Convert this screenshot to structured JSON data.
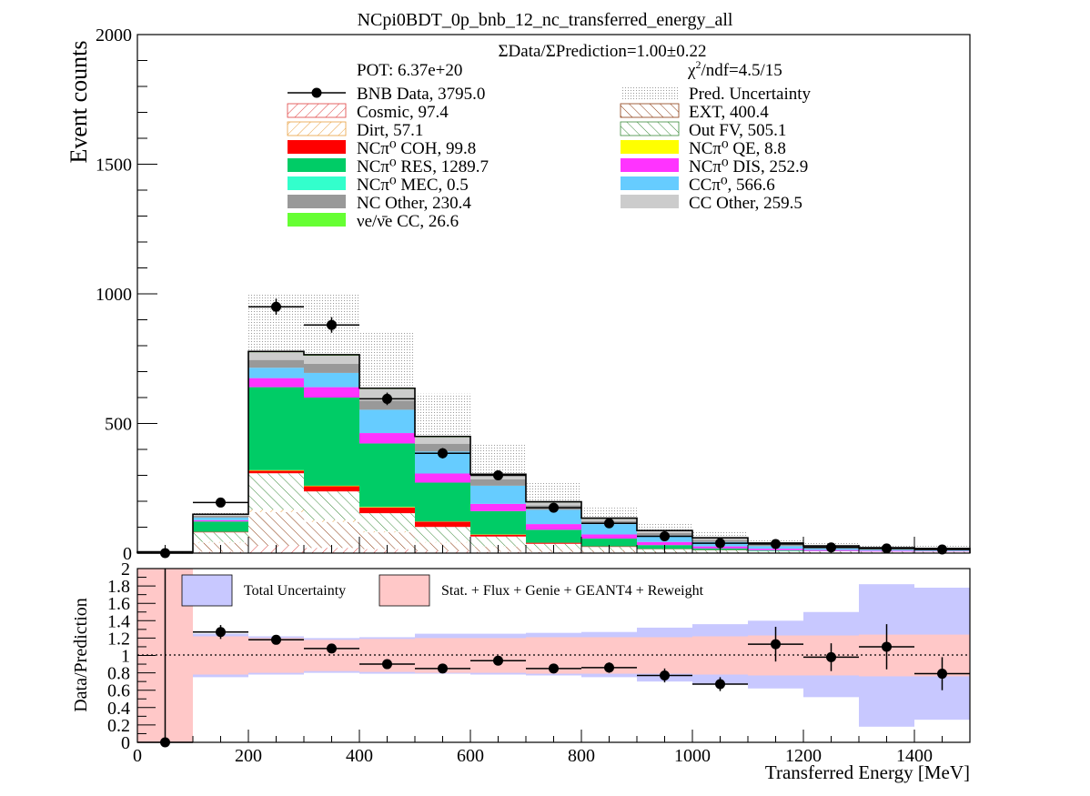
{
  "colors": {
    "cosmic_hatch": "#e04040",
    "dirt_hatch": "#e8a040",
    "ext_hatch": "#8b3a10",
    "outfv_hatch": "#3a8a3a",
    "coh": "#ff0000",
    "res": "#00cc66",
    "mec": "#33ffcc",
    "qe": "#ffff00",
    "dis": "#ff33ff",
    "ccpi0": "#66ccff",
    "nc_other": "#999999",
    "cc_other": "#cccccc",
    "nue": "#66ff33",
    "total_unc_band": "#c8c8ff",
    "stat_band": "#ffc8c8"
  },
  "chart_data": [
    {
      "type": "bar",
      "title": "NCpi0BDT_0p_bnb_12_nc_transferred_energy_all",
      "ylabel": "Event counts",
      "xlim": [
        0,
        1500
      ],
      "ylim": [
        0,
        2000
      ],
      "ratio_text": "ΣData/ΣPrediction=1.00±0.22",
      "pot_text": "POT: 6.37e+20",
      "chi2_text": "/ndf=4.5/15",
      "bin_edges": [
        0,
        100,
        200,
        300,
        400,
        500,
        600,
        700,
        800,
        900,
        1000,
        1100,
        1200,
        1300,
        1400,
        1500
      ],
      "y_ticks": [
        "0",
        "500",
        "1000",
        "1500",
        "2000"
      ],
      "stack": [
        {
          "key": "cosmic",
          "values": [
            0,
            5,
            28,
            20,
            15,
            8,
            5,
            4,
            3,
            2,
            1,
            1,
            1,
            1,
            1
          ]
        },
        {
          "key": "ext",
          "values": [
            2,
            35,
            130,
            100,
            65,
            33,
            20,
            11,
            8,
            5,
            4,
            3,
            3,
            2,
            2
          ]
        },
        {
          "key": "dirt",
          "values": [
            0,
            3,
            10,
            8,
            4,
            2,
            1,
            1,
            1,
            0,
            0,
            0,
            0,
            0,
            0
          ]
        },
        {
          "key": "outfv",
          "values": [
            3,
            37,
            140,
            110,
            70,
            58,
            38,
            20,
            12,
            8,
            6,
            4,
            3,
            3,
            3
          ]
        },
        {
          "key": "coh",
          "values": [
            0,
            2,
            10,
            20,
            22,
            20,
            7,
            4,
            2,
            1,
            1,
            0,
            0,
            0,
            0
          ]
        },
        {
          "key": "qe",
          "values": [
            0,
            0,
            2,
            2,
            2,
            1,
            1,
            0,
            0,
            0,
            0,
            0,
            0,
            0,
            0
          ]
        },
        {
          "key": "res",
          "values": [
            0,
            40,
            320,
            340,
            245,
            150,
            90,
            50,
            30,
            15,
            6,
            3,
            1,
            0,
            0
          ]
        },
        {
          "key": "dis",
          "values": [
            0,
            5,
            35,
            40,
            40,
            35,
            28,
            22,
            16,
            12,
            8,
            6,
            4,
            3,
            2
          ]
        },
        {
          "key": "mec",
          "values": [
            0,
            0,
            0,
            0,
            0,
            0,
            0,
            0,
            0,
            0,
            0,
            0,
            0,
            0,
            0
          ]
        },
        {
          "key": "ccpi0",
          "values": [
            0,
            10,
            40,
            55,
            90,
            85,
            70,
            55,
            40,
            25,
            17,
            10,
            6,
            4,
            3
          ]
        },
        {
          "key": "nc_other",
          "values": [
            0,
            7,
            30,
            35,
            35,
            30,
            25,
            17,
            12,
            10,
            8,
            6,
            5,
            4,
            4
          ]
        },
        {
          "key": "cc_other",
          "values": [
            0,
            5,
            30,
            32,
            45,
            25,
            16,
            12,
            9,
            7,
            6,
            5,
            4,
            4,
            3
          ]
        },
        {
          "key": "nue",
          "values": [
            0,
            1,
            3,
            3,
            3,
            3,
            3,
            2,
            2,
            2,
            2,
            1,
            1,
            0,
            0
          ]
        }
      ],
      "pred_uncertainty": [
        10,
        160,
        1000,
        1000,
        850,
        615,
        420,
        270,
        175,
        115,
        82,
        55,
        40,
        33,
        30
      ],
      "data_points": {
        "x": [
          50,
          150,
          250,
          350,
          450,
          550,
          650,
          750,
          850,
          950,
          1050,
          1150,
          1250,
          1350,
          1450
        ],
        "y": [
          0,
          195,
          950,
          880,
          595,
          385,
          300,
          175,
          115,
          65,
          38,
          35,
          22,
          18,
          14
        ],
        "yerr": [
          0,
          14,
          31,
          30,
          24,
          20,
          17,
          13,
          11,
          8,
          6,
          6,
          5,
          4,
          4
        ],
        "xerr": 50
      },
      "legend": {
        "data_label": "BNB Data, 3795.0",
        "entries": [
          {
            "key": "pred_unc",
            "label": "Pred. Uncertainty"
          },
          {
            "key": "cosmic",
            "label": "Cosmic, 97.4"
          },
          {
            "key": "ext",
            "label": "EXT, 400.4"
          },
          {
            "key": "dirt",
            "label": "Dirt, 57.1"
          },
          {
            "key": "outfv",
            "label": "Out FV, 505.1"
          },
          {
            "key": "coh",
            "label": "NCπ⁰ COH,  99.8"
          },
          {
            "key": "qe",
            "label": "NCπ⁰ QE,  8.8"
          },
          {
            "key": "res",
            "label": "NCπ⁰ RES,  1289.7"
          },
          {
            "key": "dis",
            "label": "NCπ⁰ DIS,  252.9"
          },
          {
            "key": "mec",
            "label": "NCπ⁰ MEC,  0.5"
          },
          {
            "key": "ccpi0",
            "label": "CCπ⁰, 566.6"
          },
          {
            "key": "nc_other",
            "label": "NC Other, 230.4"
          },
          {
            "key": "cc_other",
            "label": "CC Other, 259.5"
          },
          {
            "key": "nue",
            "label": "νe/ν̄e CC, 26.6"
          }
        ]
      }
    },
    {
      "type": "scatter",
      "xlabel": "Transferred Energy [MeV]",
      "ylabel": "Data/Prediction",
      "xlim": [
        0,
        1500
      ],
      "ylim": [
        0,
        2
      ],
      "x_ticks": [
        "0",
        "200",
        "400",
        "600",
        "800",
        "1000",
        "1200",
        "1400"
      ],
      "y_ticks": [
        "0",
        "0.2",
        "0.4",
        "0.6",
        "0.8",
        "1",
        "1.2",
        "1.4",
        "1.6",
        "1.8",
        "2"
      ],
      "legend": {
        "total": "Total Uncertainty",
        "stat": "Stat. + Flux + Genie + GEANT4 + Reweight"
      },
      "total_band": [
        [
          0.0,
          2.0
        ],
        [
          0.75,
          1.25
        ],
        [
          0.78,
          1.22
        ],
        [
          0.8,
          1.2
        ],
        [
          0.79,
          1.21
        ],
        [
          0.79,
          1.25
        ],
        [
          0.78,
          1.25
        ],
        [
          0.77,
          1.26
        ],
        [
          0.75,
          1.27
        ],
        [
          0.7,
          1.32
        ],
        [
          0.67,
          1.36
        ],
        [
          0.62,
          1.4
        ],
        [
          0.52,
          1.5
        ],
        [
          0.18,
          1.82
        ],
        [
          0.26,
          1.78
        ]
      ],
      "stat_band": [
        [
          0.0,
          2.0
        ],
        [
          0.78,
          1.22
        ],
        [
          0.8,
          1.2
        ],
        [
          0.82,
          1.18
        ],
        [
          0.81,
          1.19
        ],
        [
          0.8,
          1.2
        ],
        [
          0.8,
          1.2
        ],
        [
          0.79,
          1.21
        ],
        [
          0.79,
          1.21
        ],
        [
          0.79,
          1.21
        ],
        [
          0.78,
          1.22
        ],
        [
          0.77,
          1.23
        ],
        [
          0.77,
          1.23
        ],
        [
          0.76,
          1.24
        ],
        [
          0.76,
          1.24
        ]
      ],
      "points": {
        "x": [
          50,
          150,
          250,
          350,
          450,
          550,
          650,
          750,
          850,
          950,
          1050,
          1150,
          1250,
          1350,
          1450
        ],
        "y": [
          0,
          1.27,
          1.18,
          1.08,
          0.9,
          0.85,
          0.94,
          0.85,
          0.86,
          0.77,
          0.67,
          1.13,
          0.98,
          1.1,
          0.79
        ],
        "yerr": [
          2,
          0.08,
          0.04,
          0.04,
          0.04,
          0.04,
          0.05,
          0.04,
          0.06,
          0.08,
          0.08,
          0.2,
          0.16,
          0.26,
          0.19
        ],
        "xerr": 50
      }
    }
  ]
}
